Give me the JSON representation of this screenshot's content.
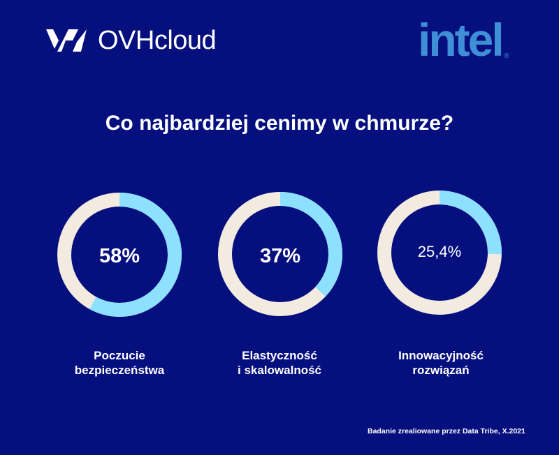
{
  "brand": {
    "ovh_name": "OVHcloud",
    "intel_name": "intel"
  },
  "colors": {
    "background": "#050f7e",
    "ring_fill": "#8ee0ff",
    "ring_track": "#f3ebdf",
    "intel_blue": "#3f8fd6"
  },
  "chart_data": {
    "type": "pie",
    "title": "Co najbardziej cenimy w chmurze?",
    "series": [
      {
        "name": "Poczucie bezpieczeństwa",
        "label_lines": [
          "Poczucie",
          "bezpieczeństwa"
        ],
        "value": 58,
        "display": "58%"
      },
      {
        "name": "Elastyczność i skalowalność",
        "label_lines": [
          "Elastyczność",
          "i skalowalność"
        ],
        "value": 37,
        "display": "37%"
      },
      {
        "name": "Innowacyjność rozwiązań",
        "label_lines": [
          "Innowacyjność",
          "rozwiązań"
        ],
        "value": 25.4,
        "display": "25,4%"
      }
    ],
    "unit": "%",
    "max": 100
  },
  "footnote": "Badanie zrealiowane przez Data Tribe, X.2021"
}
